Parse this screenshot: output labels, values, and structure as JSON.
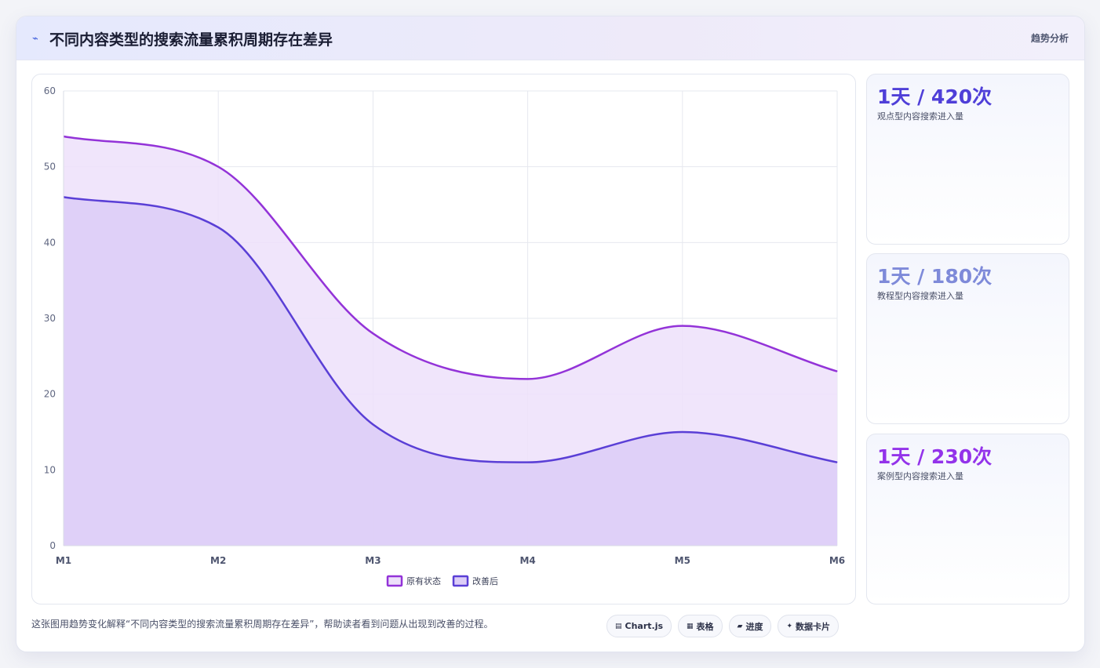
{
  "header": {
    "icon": "trend-line-icon",
    "title": "不同内容类型的搜索流量累积周期存在差异",
    "tag": "趋势分析"
  },
  "stats": [
    {
      "value": "1天 / 420次",
      "label": "观点型内容搜索进入量",
      "color": "#4f3fd8"
    },
    {
      "value": "1天 / 180次",
      "label": "教程型内容搜索进入量",
      "color": "#7e8ad9"
    },
    {
      "value": "1天 / 230次",
      "label": "案例型内容搜索进入量",
      "color": "#9333ea"
    }
  ],
  "footer": {
    "description": "这张图用趋势变化解释“不同内容类型的搜索流量累积周期存在差异”，帮助读者看到问题从出现到改善的过程。",
    "chips": [
      {
        "icon": "chart-icon",
        "glyph": "▤",
        "label": "Chart.js"
      },
      {
        "icon": "table-icon",
        "glyph": "▦",
        "label": "表格"
      },
      {
        "icon": "progress-icon",
        "glyph": "▰",
        "label": "进度"
      },
      {
        "icon": "sparkle-icon",
        "glyph": "✦",
        "label": "数据卡片"
      }
    ]
  },
  "chart_data": {
    "type": "area",
    "categories": [
      "M1",
      "M2",
      "M3",
      "M4",
      "M5",
      "M6"
    ],
    "series": [
      {
        "name": "原有状态",
        "values": [
          54,
          50,
          28,
          22,
          29,
          23
        ],
        "color": "#9333d8",
        "fill": "#ede0fa"
      },
      {
        "name": "改善后",
        "values": [
          46,
          42,
          16,
          11,
          15,
          11
        ],
        "color": "#5a3fd6",
        "fill": "#dccdf7"
      }
    ],
    "ylim": [
      0,
      60
    ],
    "yticks": [
      0,
      10,
      20,
      30,
      40,
      50,
      60
    ],
    "grid": true,
    "legend_position": "bottom",
    "title": "",
    "xlabel": "",
    "ylabel": ""
  }
}
